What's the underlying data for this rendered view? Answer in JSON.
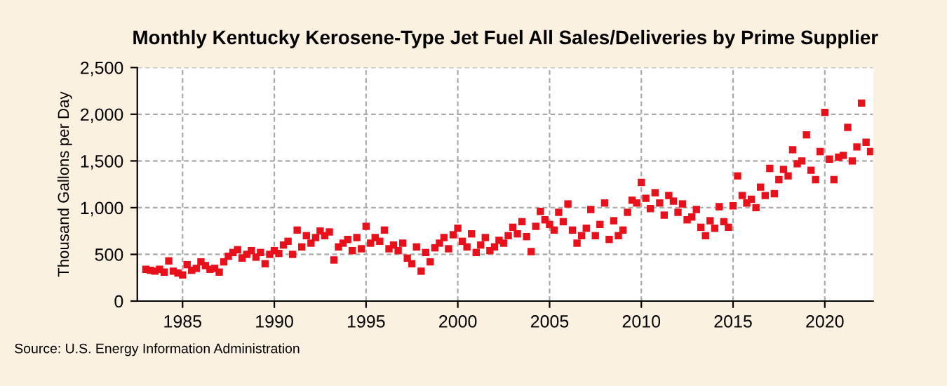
{
  "chart_data": {
    "type": "scatter",
    "title": "Monthly Kentucky Kerosene-Type Jet Fuel All Sales/Deliveries by Prime Supplier",
    "ylabel": "Thousand Gallons per Day",
    "annotations": [
      "Source: U.S. Energy Information Administration"
    ],
    "marker": "square",
    "grid": true,
    "x": [
      "1983-01",
      "1983-04",
      "1983-07",
      "1983-10",
      "1984-01",
      "1984-04",
      "1984-07",
      "1984-10",
      "1985-01",
      "1985-04",
      "1985-07",
      "1985-10",
      "1986-01",
      "1986-04",
      "1986-07",
      "1986-10",
      "1987-01",
      "1987-04",
      "1987-07",
      "1987-10",
      "1988-01",
      "1988-04",
      "1988-07",
      "1988-10",
      "1989-01",
      "1989-04",
      "1989-07",
      "1989-10",
      "1990-01",
      "1990-04",
      "1990-07",
      "1990-10",
      "1991-01",
      "1991-04",
      "1991-07",
      "1991-10",
      "1992-01",
      "1992-04",
      "1992-07",
      "1992-10",
      "1993-01",
      "1993-04",
      "1993-07",
      "1993-10",
      "1994-01",
      "1994-04",
      "1994-07",
      "1994-10",
      "1995-01",
      "1995-04",
      "1995-07",
      "1995-10",
      "1996-01",
      "1996-04",
      "1996-07",
      "1996-10",
      "1997-01",
      "1997-04",
      "1997-07",
      "1997-10",
      "1998-01",
      "1998-04",
      "1998-07",
      "1998-10",
      "1999-01",
      "1999-04",
      "1999-07",
      "1999-10",
      "2000-01",
      "2000-04",
      "2000-07",
      "2000-10",
      "2001-01",
      "2001-04",
      "2001-07",
      "2001-10",
      "2002-01",
      "2002-04",
      "2002-07",
      "2002-10",
      "2003-01",
      "2003-04",
      "2003-07",
      "2003-10",
      "2004-01",
      "2004-04",
      "2004-07",
      "2004-10",
      "2005-01",
      "2005-04",
      "2005-07",
      "2005-10",
      "2006-01",
      "2006-04",
      "2006-07",
      "2006-10",
      "2007-01",
      "2007-04",
      "2007-07",
      "2007-10",
      "2008-01",
      "2008-04",
      "2008-07",
      "2008-10",
      "2009-01",
      "2009-04",
      "2009-07",
      "2009-10",
      "2010-01",
      "2010-04",
      "2010-07",
      "2010-10",
      "2011-01",
      "2011-04",
      "2011-07",
      "2011-10",
      "2012-01",
      "2012-04",
      "2012-07",
      "2012-10",
      "2013-01",
      "2013-04",
      "2013-07",
      "2013-10",
      "2014-01",
      "2014-04",
      "2014-07",
      "2014-10",
      "2015-01",
      "2015-04",
      "2015-07",
      "2015-10",
      "2016-01",
      "2016-04",
      "2016-07",
      "2016-10",
      "2017-01",
      "2017-04",
      "2017-07",
      "2017-10",
      "2018-01",
      "2018-04",
      "2018-07",
      "2018-10",
      "2019-01",
      "2019-04",
      "2019-07",
      "2019-10",
      "2020-01",
      "2020-04",
      "2020-07",
      "2020-10",
      "2021-01",
      "2021-04",
      "2021-07",
      "2021-10",
      "2022-01",
      "2022-04",
      "2022-07"
    ],
    "series": [
      {
        "color": "#e8101a",
        "values": [
          340,
          330,
          320,
          340,
          310,
          430,
          320,
          300,
          280,
          390,
          330,
          350,
          420,
          380,
          340,
          350,
          310,
          420,
          480,
          520,
          550,
          460,
          500,
          540,
          470,
          520,
          400,
          500,
          540,
          510,
          600,
          640,
          500,
          760,
          580,
          700,
          620,
          680,
          750,
          700,
          740,
          440,
          580,
          620,
          660,
          540,
          680,
          560,
          800,
          620,
          680,
          640,
          760,
          560,
          600,
          540,
          620,
          460,
          400,
          580,
          320,
          520,
          420,
          570,
          620,
          680,
          560,
          710,
          780,
          640,
          580,
          720,
          520,
          600,
          680,
          540,
          580,
          650,
          620,
          700,
          790,
          720,
          850,
          690,
          530,
          800,
          960,
          870,
          820,
          760,
          950,
          850,
          1040,
          760,
          620,
          700,
          780,
          980,
          700,
          820,
          1050,
          660,
          860,
          700,
          760,
          950,
          1080,
          1050,
          1270,
          1100,
          990,
          1160,
          1050,
          920,
          1130,
          1070,
          950,
          1040,
          870,
          900,
          980,
          790,
          700,
          860,
          780,
          1010,
          850,
          790,
          1020,
          1340,
          1130,
          1050,
          1090,
          1000,
          1220,
          1130,
          1420,
          1150,
          1300,
          1410,
          1340,
          1620,
          1470,
          1500,
          1780,
          1400,
          1300,
          1600,
          2020,
          1520,
          1300,
          1540,
          1560,
          1860,
          1500,
          1650,
          2120,
          1700,
          1600
        ]
      }
    ],
    "xlim": [
      "1982-07-15",
      "2022-08-20"
    ],
    "xticks": [
      "1985",
      "1990",
      "1995",
      "2000",
      "2005",
      "2010",
      "2015",
      "2020"
    ],
    "ylim": [
      0,
      2500
    ],
    "yticks": [
      {
        "value": 0,
        "label": "0"
      },
      {
        "value": 500,
        "label": "500"
      },
      {
        "value": 1000,
        "label": "1,000"
      },
      {
        "value": 1500,
        "label": "1,500"
      },
      {
        "value": 2000,
        "label": "2,000"
      },
      {
        "value": 2500,
        "label": "2,500"
      }
    ]
  }
}
